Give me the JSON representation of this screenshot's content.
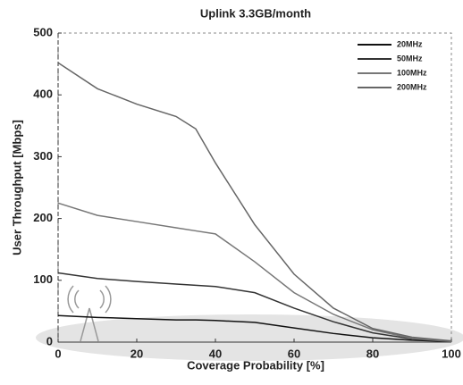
{
  "chart_data": {
    "type": "line",
    "title": "Uplink  3.3GB/month",
    "x_label": "Coverage Probability [%]",
    "y_label": "User Throughput [Mbps]",
    "x": [
      0,
      10,
      20,
      30,
      35,
      40,
      50,
      60,
      70,
      80,
      90,
      100
    ],
    "series": [
      {
        "name": "20MHz",
        "color": "#111111",
        "values": [
          43,
          40,
          38,
          36,
          36,
          35,
          32,
          23,
          14,
          7,
          3,
          1
        ]
      },
      {
        "name": "50MHz",
        "color": "#333333",
        "values": [
          112,
          103,
          98,
          94,
          92,
          90,
          80,
          55,
          33,
          15,
          5,
          1
        ]
      },
      {
        "name": "100MHz",
        "color": "#777777",
        "values": [
          225,
          205,
          195,
          185,
          180,
          175,
          130,
          80,
          45,
          20,
          6,
          1
        ]
      },
      {
        "name": "200MHz",
        "color": "#666666",
        "values": [
          452,
          410,
          385,
          365,
          345,
          290,
          190,
          110,
          55,
          22,
          8,
          2
        ]
      }
    ],
    "xlim": [
      0,
      100
    ],
    "ylim": [
      0,
      500
    ],
    "xticks": [
      0,
      20,
      40,
      60,
      80,
      100
    ],
    "yticks": [
      0,
      100,
      200,
      300,
      400,
      500
    ],
    "legend": "upper right"
  }
}
